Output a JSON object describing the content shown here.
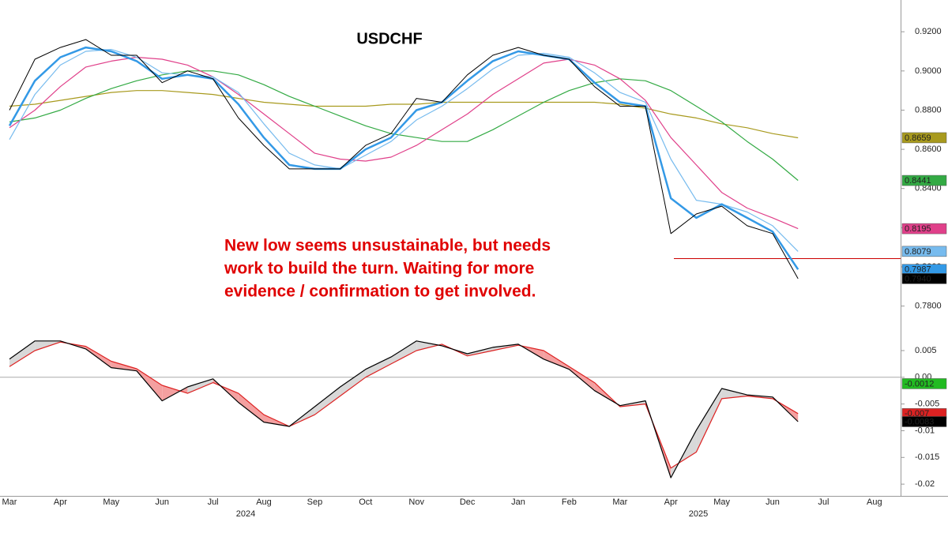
{
  "chart_data": [
    {
      "type": "line",
      "title": "USDCHF",
      "annotation": [
        "New low seems unsustainable, but needs",
        "work to build the turn. Waiting for more",
        "evidence / confirmation to get involved."
      ],
      "categories": [
        "Mar",
        null,
        "Apr",
        null,
        "May",
        null,
        "Jun",
        null,
        "Jul",
        null,
        "Aug",
        null,
        "Sep",
        null,
        "Oct",
        null,
        "Nov",
        null,
        "Dec",
        null,
        "Jan",
        null,
        "Feb",
        null,
        "Mar",
        null,
        "Apr",
        null,
        "May",
        null,
        "Jun",
        null,
        "Jul",
        null,
        "Aug",
        null
      ],
      "years": [
        "2024",
        "2025"
      ],
      "ylim": [
        0.775,
        0.935
      ],
      "yticks": [
        {
          "value": 0.78,
          "label": "0.7800"
        },
        {
          "value": 0.8,
          "label": "0.8000"
        },
        {
          "value": 0.82,
          "label": "0.8200"
        },
        {
          "value": 0.84,
          "label": "0.8400"
        },
        {
          "value": 0.86,
          "label": "0.8600"
        },
        {
          "value": 0.88,
          "label": "0.8800"
        },
        {
          "value": 0.9,
          "label": "0.9000"
        },
        {
          "value": 0.92,
          "label": "0.9200"
        }
      ],
      "hline": {
        "value": 0.8042,
        "color": "#cc0000"
      },
      "series": [
        {
          "color": "#a89a1e",
          "width": 1.2,
          "end_label": "0.8659",
          "values": [
            0.882,
            0.883,
            0.885,
            0.887,
            0.889,
            0.89,
            0.89,
            0.889,
            0.888,
            0.886,
            0.884,
            0.883,
            0.882,
            0.882,
            0.882,
            0.883,
            0.883,
            0.884,
            0.884,
            0.884,
            0.884,
            0.884,
            0.884,
            0.884,
            0.883,
            0.881,
            0.878,
            0.876,
            0.873,
            0.871,
            0.868,
            0.8659,
            null,
            null,
            null,
            null
          ]
        },
        {
          "color": "#33aa44",
          "width": 1.2,
          "end_label": "0.8441",
          "values": [
            0.874,
            0.876,
            0.88,
            0.886,
            0.891,
            0.895,
            0.898,
            0.9,
            0.9,
            0.898,
            0.893,
            0.887,
            0.882,
            0.877,
            0.872,
            0.868,
            0.866,
            0.864,
            0.864,
            0.87,
            0.877,
            0.884,
            0.89,
            0.894,
            0.896,
            0.895,
            0.89,
            0.882,
            0.874,
            0.864,
            0.855,
            0.8441,
            null,
            null,
            null,
            null
          ]
        },
        {
          "color": "#e0408a",
          "width": 1.2,
          "end_label": "0.8195",
          "values": [
            0.871,
            0.88,
            0.892,
            0.902,
            0.905,
            0.907,
            0.906,
            0.903,
            0.897,
            0.888,
            0.878,
            0.868,
            0.858,
            0.855,
            0.854,
            0.856,
            0.862,
            0.87,
            0.878,
            0.888,
            0.896,
            0.904,
            0.906,
            0.903,
            0.896,
            0.885,
            0.866,
            0.852,
            0.838,
            0.83,
            0.825,
            0.8195,
            null,
            null,
            null,
            null
          ]
        },
        {
          "color": "#77bbee",
          "width": 1.2,
          "end_label": "0.8079",
          "values": [
            0.865,
            0.888,
            0.903,
            0.91,
            0.911,
            0.907,
            0.899,
            0.898,
            0.897,
            0.889,
            0.873,
            0.858,
            0.852,
            0.85,
            0.857,
            0.864,
            0.875,
            0.882,
            0.891,
            0.901,
            0.908,
            0.909,
            0.907,
            0.899,
            0.889,
            0.884,
            0.855,
            0.834,
            0.832,
            0.828,
            0.821,
            0.8079,
            null,
            null,
            null,
            null
          ]
        },
        {
          "color": "#3399e6",
          "width": 2.5,
          "end_label": "0.7987",
          "values": [
            0.872,
            0.895,
            0.907,
            0.912,
            0.91,
            0.905,
            0.896,
            0.898,
            0.896,
            0.883,
            0.866,
            0.852,
            0.85,
            0.85,
            0.86,
            0.866,
            0.88,
            0.884,
            0.895,
            0.905,
            0.91,
            0.908,
            0.906,
            0.894,
            0.884,
            0.882,
            0.835,
            0.825,
            0.832,
            0.825,
            0.818,
            0.7987,
            null,
            null,
            null,
            null
          ]
        },
        {
          "color": "#000000",
          "width": 1,
          "end_label": "0.7940",
          "values": [
            0.88,
            0.906,
            0.912,
            0.916,
            0.908,
            0.908,
            0.894,
            0.9,
            0.896,
            0.876,
            0.862,
            0.85,
            0.85,
            0.85,
            0.862,
            0.868,
            0.886,
            0.884,
            0.898,
            0.908,
            0.912,
            0.908,
            0.906,
            0.892,
            0.882,
            0.882,
            0.817,
            0.827,
            0.831,
            0.821,
            0.817,
            0.794,
            null,
            null,
            null,
            null
          ]
        }
      ]
    },
    {
      "type": "line",
      "ylim": [
        -0.0222,
        0.0115
      ],
      "yticks": [
        0.005,
        {
          "value": 0,
          "label": "0.00"
        },
        -0.005,
        -0.01,
        -0.015,
        -0.02
      ],
      "zero_line": true,
      "fill_colors": [
        "#d8d8d8",
        "#f4a0a0"
      ],
      "extra_end_labels": [
        {
          "value": -0.0012,
          "color": "#22bb22"
        }
      ],
      "series": [
        {
          "color": "#dd2222",
          "end_label": "-0.007",
          "values": [
            0.002,
            0.005,
            0.0066,
            0.0058,
            0.003,
            0.0016,
            -0.0015,
            -0.003,
            -0.001,
            -0.003,
            -0.007,
            -0.0092,
            -0.007,
            -0.0035,
            0.0,
            0.0025,
            0.005,
            0.0062,
            0.004,
            0.005,
            0.006,
            0.005,
            0.002,
            -0.001,
            -0.0055,
            -0.005,
            -0.017,
            -0.014,
            -0.004,
            -0.0035,
            -0.004,
            -0.0068,
            null,
            null,
            null,
            null
          ]
        },
        {
          "color": "#000000",
          "end_label": "-0.0083",
          "values": [
            0.0034,
            0.0068,
            0.0068,
            0.0053,
            0.0018,
            0.0012,
            -0.0044,
            -0.0018,
            -0.0003,
            -0.0047,
            -0.0084,
            -0.0092,
            -0.0055,
            -0.0018,
            0.0015,
            0.0038,
            0.0068,
            0.0059,
            0.0044,
            0.0056,
            0.0062,
            0.0034,
            0.0015,
            -0.0025,
            -0.0053,
            -0.0044,
            -0.0188,
            -0.0099,
            -0.0021,
            -0.0033,
            -0.0037,
            -0.0083,
            null,
            null,
            null,
            null
          ]
        }
      ]
    }
  ]
}
